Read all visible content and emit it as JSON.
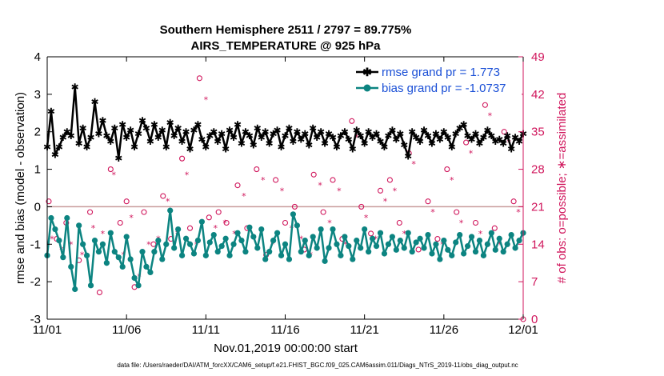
{
  "chart_data": {
    "type": "line",
    "title": "Southern Hemisphere 2511 / 2797 = 89.775%",
    "subtitle": "AIRS_TEMPERATURE @ 925 hPa",
    "xlabel": "Nov.01,2019 00:00:00 start",
    "ylabel": "rmse and bias (model - observation)",
    "ylabel_right": "# of obs: o=possible; ∗=assimilated",
    "footer": "data file: /Users/raeder/DAI/ATM_forcXX/CAM6_setup/f.e21.FHIST_BGC.f09_025.CAM6assim.011/Diags_NTrS_2019-11/obs_diag_output.nc",
    "x_tick_labels": [
      "11/01",
      "11/06",
      "11/11",
      "11/16",
      "11/21",
      "11/26",
      "12/01"
    ],
    "x_tick_days": [
      0,
      5,
      10,
      15,
      20,
      25,
      30
    ],
    "xlim": [
      0,
      30
    ],
    "ylim": [
      -3,
      4
    ],
    "y_ticks": [
      -3,
      -2,
      -1,
      0,
      1,
      2,
      3,
      4
    ],
    "y2lim": [
      0,
      49
    ],
    "y2_ticks": [
      0,
      7,
      14,
      21,
      28,
      35,
      42,
      49
    ],
    "legend_placement": "top-right",
    "series": [
      {
        "name": "rmse grand pr = 1.773",
        "color": "#000000",
        "marker": "star",
        "x": [
          0.0,
          0.25,
          0.5,
          0.75,
          1.0,
          1.25,
          1.5,
          1.75,
          2.0,
          2.25,
          2.5,
          2.75,
          3.0,
          3.25,
          3.5,
          3.75,
          4.0,
          4.25,
          4.5,
          4.75,
          5.0,
          5.25,
          5.5,
          5.75,
          6.0,
          6.25,
          6.5,
          6.75,
          7.0,
          7.25,
          7.5,
          7.75,
          8.0,
          8.25,
          8.5,
          8.75,
          9.0,
          9.25,
          9.5,
          9.75,
          10.0,
          10.25,
          10.5,
          10.75,
          11.0,
          11.25,
          11.5,
          11.75,
          12.0,
          12.25,
          12.5,
          12.75,
          13.0,
          13.25,
          13.5,
          13.75,
          14.0,
          14.25,
          14.5,
          14.75,
          15.0,
          15.25,
          15.5,
          15.75,
          16.0,
          16.25,
          16.5,
          16.75,
          17.0,
          17.25,
          17.5,
          17.75,
          18.0,
          18.25,
          18.5,
          18.75,
          19.0,
          19.25,
          19.5,
          19.75,
          20.0,
          20.25,
          20.5,
          20.75,
          21.0,
          21.25,
          21.5,
          21.75,
          22.0,
          22.25,
          22.5,
          22.75,
          23.0,
          23.25,
          23.5,
          23.75,
          24.0,
          24.25,
          24.5,
          24.75,
          25.0,
          25.25,
          25.5,
          25.75,
          26.0,
          26.25,
          26.5,
          26.75,
          27.0,
          27.25,
          27.5,
          27.75,
          28.0,
          28.25,
          28.5,
          28.75,
          29.0,
          29.25,
          29.5,
          29.75,
          30.0
        ],
        "values": [
          1.6,
          2.55,
          1.4,
          1.6,
          1.85,
          2.0,
          1.9,
          3.2,
          1.7,
          2.1,
          1.6,
          1.85,
          2.8,
          1.95,
          2.3,
          1.9,
          1.75,
          2.1,
          1.3,
          2.2,
          1.85,
          2.05,
          1.6,
          1.95,
          2.3,
          2.1,
          1.75,
          2.2,
          1.85,
          2.05,
          1.6,
          2.25,
          1.9,
          2.1,
          1.75,
          2.0,
          1.55,
          2.05,
          2.2,
          1.8,
          1.6,
          1.9,
          2.0,
          1.75,
          1.95,
          1.55,
          2.05,
          1.85,
          2.2,
          1.7,
          2.0,
          1.9,
          1.65,
          2.1,
          1.85,
          2.0,
          1.7,
          1.95,
          2.05,
          1.6,
          1.9,
          2.1,
          1.75,
          2.0,
          1.8,
          1.95,
          1.65,
          2.1,
          1.85,
          2.0,
          1.7,
          1.95,
          1.85,
          1.6,
          1.9,
          2.0,
          1.8,
          1.55,
          2.05,
          1.9,
          1.7,
          2.0,
          1.85,
          1.95,
          1.75,
          1.6,
          1.9,
          2.05,
          1.8,
          1.95,
          1.65,
          1.35,
          2.0,
          1.85,
          1.75,
          2.05,
          1.9,
          1.7,
          1.95,
          1.8,
          2.0,
          1.85,
          1.6,
          1.95,
          2.1,
          2.2,
          1.9,
          1.8,
          1.95,
          1.7,
          1.85,
          2.05,
          1.9,
          1.75,
          1.8,
          1.7,
          1.9,
          1.55,
          1.85,
          1.75,
          1.95
        ]
      },
      {
        "name": "bias grand pr = -1.0737",
        "color": "#0c8481",
        "marker": "dot",
        "x": [
          0.0,
          0.25,
          0.5,
          0.75,
          1.0,
          1.25,
          1.5,
          1.75,
          2.0,
          2.25,
          2.5,
          2.75,
          3.0,
          3.25,
          3.5,
          3.75,
          4.0,
          4.25,
          4.5,
          4.75,
          5.0,
          5.25,
          5.5,
          5.75,
          6.0,
          6.25,
          6.5,
          6.75,
          7.0,
          7.25,
          7.5,
          7.75,
          8.0,
          8.25,
          8.5,
          8.75,
          9.0,
          9.25,
          9.5,
          9.75,
          10.0,
          10.25,
          10.5,
          10.75,
          11.0,
          11.25,
          11.5,
          11.75,
          12.0,
          12.25,
          12.5,
          12.75,
          13.0,
          13.25,
          13.5,
          13.75,
          14.0,
          14.25,
          14.5,
          14.75,
          15.0,
          15.25,
          15.5,
          15.75,
          16.0,
          16.25,
          16.5,
          16.75,
          17.0,
          17.25,
          17.5,
          17.75,
          18.0,
          18.25,
          18.5,
          18.75,
          19.0,
          19.25,
          19.5,
          19.75,
          20.0,
          20.25,
          20.5,
          20.75,
          21.0,
          21.25,
          21.5,
          21.75,
          22.0,
          22.25,
          22.5,
          22.75,
          23.0,
          23.25,
          23.5,
          23.75,
          24.0,
          24.25,
          24.5,
          24.75,
          25.0,
          25.25,
          25.5,
          25.75,
          26.0,
          26.25,
          26.5,
          26.75,
          27.0,
          27.25,
          27.5,
          27.75,
          28.0,
          28.25,
          28.5,
          28.75,
          29.0,
          29.25,
          29.5,
          29.75,
          30.0
        ],
        "values": [
          -1.3,
          -0.3,
          -0.6,
          -0.9,
          -1.35,
          -0.3,
          -1.6,
          -2.2,
          -0.5,
          -1.0,
          -1.3,
          -2.1,
          -0.9,
          -1.2,
          -1.0,
          -1.5,
          -0.7,
          -1.2,
          -1.35,
          -1.6,
          -0.8,
          -1.4,
          -1.9,
          -2.1,
          -1.2,
          -1.6,
          -1.75,
          -1.2,
          -0.9,
          -1.4,
          -1.0,
          -0.1,
          -1.1,
          -0.6,
          -1.3,
          -0.85,
          -1.0,
          -1.25,
          -0.9,
          -0.4,
          -1.3,
          -0.95,
          -0.75,
          -1.2,
          -1.05,
          -0.85,
          -1.3,
          -1.0,
          -0.7,
          -0.9,
          -1.2,
          -0.55,
          -0.8,
          -1.1,
          -0.6,
          -1.4,
          -1.2,
          -0.9,
          -0.7,
          -1.3,
          -1.0,
          -1.4,
          -0.2,
          -0.5,
          -1.2,
          -0.9,
          -1.3,
          -0.8,
          -1.1,
          -0.6,
          -1.45,
          -1.1,
          -0.6,
          -1.0,
          -1.3,
          -0.8,
          -1.05,
          -1.4,
          -0.9,
          -1.1,
          -0.6,
          -1.2,
          -0.85,
          -1.05,
          -0.7,
          -1.25,
          -1.0,
          -0.8,
          -1.15,
          -0.9,
          -1.1,
          -0.7,
          -1.2,
          -0.95,
          -0.85,
          -1.1,
          -0.75,
          -1.25,
          -1.0,
          -1.4,
          -0.9,
          -1.15,
          -1.3,
          -0.95,
          -0.75,
          -1.25,
          -1.05,
          -0.8,
          -1.2,
          -0.9,
          -1.3,
          -1.0,
          -0.7,
          -1.15,
          -0.85,
          -1.2,
          -1.0,
          -0.75,
          -1.1,
          -0.9,
          -0.7
        ]
      }
    ],
    "obs_series": [
      {
        "name": "possible",
        "marker": "circle",
        "color": "#d0165c",
        "x": [
          0.1,
          0.6,
          1.2,
          2.0,
          2.7,
          3.3,
          4.0,
          4.6,
          5.0,
          5.5,
          6.1,
          6.7,
          7.3,
          7.8,
          8.5,
          9.0,
          9.6,
          10.2,
          10.8,
          11.3,
          12.0,
          12.6,
          13.2,
          13.8,
          14.4,
          15.0,
          15.6,
          16.2,
          16.8,
          17.4,
          18.0,
          18.6,
          19.2,
          19.8,
          20.4,
          21.0,
          21.6,
          22.2,
          22.8,
          23.4,
          24.0,
          24.6,
          25.2,
          25.8,
          26.4,
          27.0,
          27.6,
          28.2,
          28.8,
          29.4,
          30.0
        ],
        "values": [
          22,
          15,
          18,
          11,
          20,
          5,
          28,
          18,
          22,
          6,
          20,
          14,
          23,
          15,
          30,
          17,
          45,
          19,
          20,
          18,
          25,
          17,
          28,
          12,
          26,
          18,
          21,
          13,
          27,
          20,
          26,
          15,
          37,
          21,
          16,
          24,
          26,
          18,
          31,
          13,
          22,
          15,
          28,
          20,
          33,
          18,
          40,
          17,
          35,
          22,
          0
        ]
      },
      {
        "name": "assimilated",
        "marker": "asterisk",
        "color": "#d0165c",
        "x": [
          0.3,
          0.9,
          1.5,
          2.2,
          2.9,
          3.5,
          4.2,
          4.8,
          5.3,
          5.8,
          6.4,
          7.0,
          7.6,
          8.2,
          8.8,
          9.4,
          10.0,
          10.6,
          11.2,
          11.8,
          12.4,
          13.0,
          13.6,
          14.2,
          14.8,
          15.4,
          16.0,
          16.6,
          17.2,
          17.8,
          18.4,
          18.8,
          19.5,
          20.1,
          20.7,
          21.3,
          21.9,
          22.5,
          23.1,
          23.7,
          24.3,
          24.9,
          25.5,
          26.1,
          26.7,
          27.3,
          27.9,
          28.5,
          29.1,
          29.7
        ],
        "values": [
          15,
          13,
          14,
          12,
          17,
          16,
          27,
          12,
          19,
          8,
          14,
          15,
          22,
          16,
          27,
          14,
          41,
          17,
          18,
          16,
          23,
          15,
          26,
          14,
          24,
          17,
          15,
          12,
          25,
          18,
          24,
          14,
          34,
          19,
          15,
          22,
          24,
          16,
          29,
          13,
          20,
          14,
          26,
          18,
          31,
          16,
          38,
          14,
          33,
          20
        ]
      }
    ]
  }
}
